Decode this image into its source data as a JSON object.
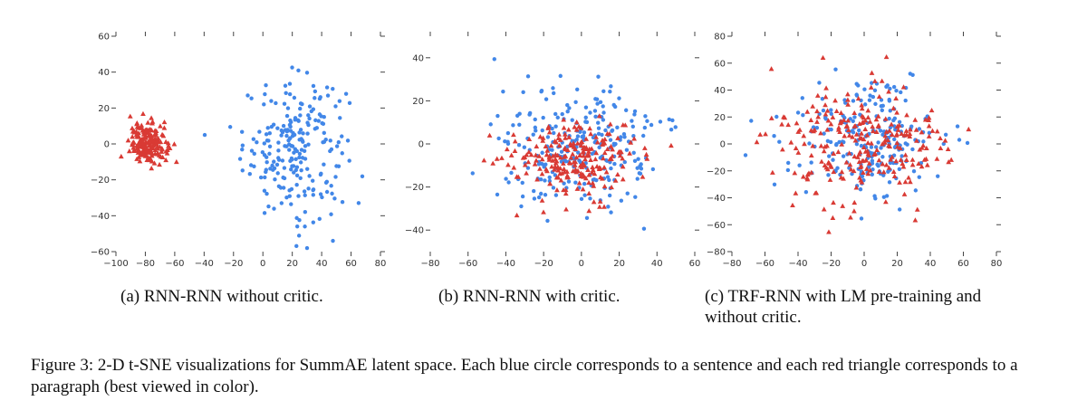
{
  "chart_data": [
    {
      "type": "scatter",
      "caption": "(a) RNN-RNN without critic.",
      "xlim": [
        -100,
        80
      ],
      "ylim": [
        -60,
        60
      ],
      "xticks": [
        -100,
        -80,
        -60,
        -40,
        -20,
        0,
        20,
        40,
        60,
        80
      ],
      "yticks": [
        -60,
        -40,
        -20,
        0,
        20,
        40,
        60
      ],
      "grid": false,
      "legend": "none",
      "series": [
        {
          "marker": "circle",
          "color": "#4287e8",
          "cluster": {
            "center": [
              22,
              -2
            ],
            "spread": [
              22,
              24
            ],
            "count": 230
          }
        },
        {
          "marker": "triangle",
          "color": "#d93a34",
          "cluster": {
            "center": [
              -78,
              0
            ],
            "spread": [
              8,
              7
            ],
            "count": 190
          }
        }
      ]
    },
    {
      "type": "scatter",
      "caption": "(b) RNN-RNN with critic.",
      "xlim": [
        -80,
        60
      ],
      "ylim": [
        -50,
        50
      ],
      "xticks": [
        -80,
        -60,
        -40,
        -20,
        0,
        20,
        40,
        60
      ],
      "yticks": [
        -40,
        -20,
        0,
        20,
        40
      ],
      "grid": false,
      "legend": "none",
      "series": [
        {
          "marker": "circle",
          "color": "#4287e8",
          "cluster": {
            "center": [
              0,
              -2
            ],
            "spread": [
              26,
              18
            ],
            "count": 260
          }
        },
        {
          "marker": "triangle",
          "color": "#d93a34",
          "cluster": {
            "center": [
              -5,
              -8
            ],
            "spread": [
              20,
              11
            ],
            "count": 230
          }
        }
      ]
    },
    {
      "type": "scatter",
      "caption": "(c) TRF-RNN with LM pre-training and without critic.",
      "xlim": [
        -80,
        80
      ],
      "ylim": [
        -80,
        80
      ],
      "xticks": [
        -80,
        -60,
        -40,
        -20,
        0,
        20,
        40,
        60,
        80
      ],
      "yticks": [
        -80,
        -60,
        -40,
        -20,
        0,
        20,
        40,
        60,
        80
      ],
      "grid": false,
      "legend": "none",
      "series": [
        {
          "marker": "circle",
          "color": "#4287e8",
          "cluster": {
            "center": [
              2,
              0
            ],
            "spread": [
              26,
              28
            ],
            "count": 230
          }
        },
        {
          "marker": "triangle",
          "color": "#d93a34",
          "cluster": {
            "center": [
              0,
              0
            ],
            "spread": [
              32,
              30
            ],
            "count": 260
          }
        }
      ]
    }
  ],
  "captions": {
    "a": "(a) RNN-RNN without critic.",
    "b": "(b) RNN-RNN with critic.",
    "c": "(c) TRF-RNN with LM pre-training and without critic.",
    "figure": "Figure 3: 2-D t-SNE visualizations for SummAE latent space. Each blue circle corresponds to a sentence and each red triangle corresponds to a paragraph (best viewed in color)."
  }
}
